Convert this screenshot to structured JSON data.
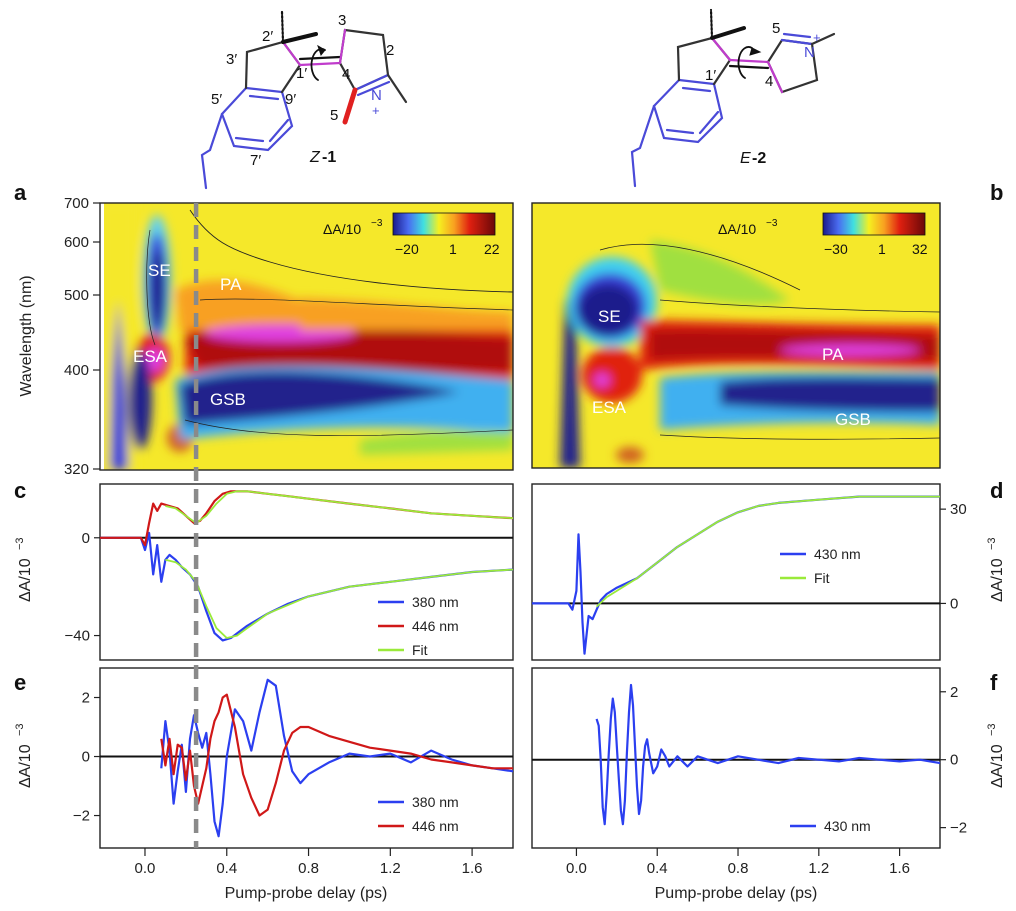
{
  "colors": {
    "blue": "#2b3ff0",
    "red": "#d01818",
    "fit": "#9aea3a",
    "dashed": "#8a8a8a",
    "molBlue": "#4a4ad8",
    "molMagenta": "#c03ccc",
    "molRed": "#e02020"
  },
  "molecules": [
    {
      "name_prefix": "Z",
      "name_num": "-1",
      "atom_labels": [
        "2′",
        "3′",
        "3",
        "2",
        "1′",
        "4",
        "5′",
        "9′",
        "5",
        "7′",
        "N"
      ],
      "charge": "+"
    },
    {
      "name_prefix": "E",
      "name_num": "-2",
      "atom_labels": [
        "5",
        "1′",
        "4",
        "N"
      ],
      "charge": "+"
    }
  ],
  "panels": {
    "a": "a",
    "b": "b",
    "c": "c",
    "d": "d",
    "e": "e",
    "f": "f"
  },
  "axes": {
    "x_label": "Pump-probe delay (ps)",
    "wavelength_label": "Wavelength (nm)",
    "dA_label_base": "ΔA/10",
    "dA_label_exp": "−3",
    "x_ticks": [
      "0.0",
      "0.4",
      "0.8",
      "1.2",
      "1.6"
    ],
    "x_tick_values": [
      0.0,
      0.4,
      0.8,
      1.2,
      1.6
    ],
    "x_range": [
      -0.22,
      1.8
    ],
    "wavelength_ticks": [
      "700",
      "600",
      "500",
      "400",
      "320"
    ],
    "wavelength_tick_values": [
      700,
      600,
      500,
      400,
      320
    ]
  },
  "map_labels": {
    "left": [
      "SE",
      "PA",
      "ESA",
      "GSB"
    ],
    "right": [
      "SE",
      "PA",
      "ESA",
      "GSB"
    ]
  },
  "colorbars": {
    "left": {
      "title_base": "ΔA/10",
      "title_exp": "−3",
      "min": "−20",
      "mid": "1",
      "max": "22"
    },
    "right": {
      "title_base": "ΔA/10",
      "title_exp": "−3",
      "min": "−30",
      "mid": "1",
      "max": "32"
    }
  },
  "chart_data": [
    {
      "panel": "a",
      "type": "heatmap",
      "x_range": [
        -0.22,
        1.8
      ],
      "wavelength_range": [
        320,
        700
      ],
      "colorbar_range": [
        -20,
        22
      ],
      "annotations": [
        "SE",
        "PA",
        "ESA",
        "GSB"
      ]
    },
    {
      "panel": "b",
      "type": "heatmap",
      "x_range": [
        -0.22,
        1.8
      ],
      "wavelength_range": [
        320,
        700
      ],
      "colorbar_range": [
        -30,
        32
      ],
      "annotations": [
        "SE",
        "PA",
        "ESA",
        "GSB"
      ]
    },
    {
      "panel": "c",
      "type": "line",
      "y_ticks": [
        "0",
        "−40"
      ],
      "y_tick_values": [
        0,
        -40
      ],
      "ylim": [
        -50,
        22
      ],
      "series": [
        {
          "name": "380 nm",
          "color": "#2b3ff0",
          "x": [
            -0.22,
            -0.02,
            0.0,
            0.02,
            0.04,
            0.06,
            0.08,
            0.1,
            0.12,
            0.15,
            0.18,
            0.22,
            0.26,
            0.3,
            0.34,
            0.38,
            0.42,
            0.5,
            0.6,
            0.7,
            0.8,
            1.0,
            1.2,
            1.4,
            1.6,
            1.8
          ],
          "y": [
            0,
            0,
            -5,
            2,
            -15,
            -3,
            -18,
            -9,
            -7,
            -9,
            -12,
            -15,
            -20,
            -30,
            -39,
            -42,
            -41,
            -36,
            -31,
            -27,
            -24,
            -20,
            -18,
            -16,
            -14,
            -13
          ]
        },
        {
          "name": "446 nm",
          "x": [
            -0.22,
            -0.02,
            0.0,
            0.02,
            0.04,
            0.06,
            0.08,
            0.12,
            0.16,
            0.2,
            0.24,
            0.27,
            0.3,
            0.34,
            0.38,
            0.42,
            0.46,
            0.5,
            0.6,
            0.7,
            0.8,
            1.0,
            1.2,
            1.4,
            1.6,
            1.8
          ],
          "y": [
            0,
            0,
            -3,
            6,
            14,
            11,
            14,
            13,
            12,
            9,
            6,
            7,
            10,
            15,
            18,
            19,
            19,
            19,
            18,
            17,
            16,
            14,
            12,
            10,
            9,
            8
          ]
        },
        {
          "name": "Fit",
          "x": [
            0.1,
            0.15,
            0.2,
            0.25,
            0.3,
            0.35,
            0.4,
            0.45,
            0.5,
            0.6,
            0.8,
            1.0,
            1.2,
            1.4,
            1.6,
            1.8
          ],
          "y": [
            -9,
            -10,
            -13,
            -18,
            -28,
            -37,
            -41,
            -40,
            -37,
            -31,
            -24,
            -20,
            -18,
            -16,
            -14,
            -13
          ]
        },
        {
          "name": "Fit",
          "x": [
            0.1,
            0.15,
            0.2,
            0.25,
            0.3,
            0.35,
            0.4,
            0.45,
            0.5,
            0.6,
            0.8,
            1.0,
            1.2,
            1.4,
            1.6,
            1.8
          ],
          "y": [
            13,
            12,
            9,
            6,
            9,
            14,
            18,
            19,
            19,
            18,
            16,
            14,
            12,
            10,
            9,
            8
          ]
        }
      ],
      "legend": [
        {
          "label": "380 nm",
          "color": "#2b3ff0"
        },
        {
          "label": "446 nm",
          "color": "#d01818"
        },
        {
          "label": "Fit",
          "color": "#9aea3a"
        }
      ]
    },
    {
      "panel": "d",
      "type": "line",
      "y_ticks": [
        "30",
        "0"
      ],
      "y_tick_values": [
        30,
        0
      ],
      "ylim": [
        -18,
        38
      ],
      "series": [
        {
          "name": "430 nm",
          "color": "#2b3ff0",
          "x": [
            -0.22,
            -0.04,
            -0.02,
            0.0,
            0.01,
            0.02,
            0.03,
            0.04,
            0.06,
            0.08,
            0.1,
            0.12,
            0.15,
            0.2,
            0.3,
            0.4,
            0.5,
            0.6,
            0.7,
            0.8,
            0.9,
            1.0,
            1.2,
            1.4,
            1.6,
            1.8
          ],
          "y": [
            0,
            0,
            -2,
            4,
            22,
            10,
            -6,
            -16,
            -4,
            -5,
            -2,
            1,
            3,
            5,
            8,
            13,
            18,
            22,
            26,
            29,
            31,
            32,
            33,
            34,
            34,
            34
          ]
        },
        {
          "name": "Fit",
          "color": "#9aea3a",
          "x": [
            0.1,
            0.15,
            0.2,
            0.3,
            0.4,
            0.5,
            0.6,
            0.7,
            0.8,
            0.9,
            1.0,
            1.2,
            1.4,
            1.6,
            1.8
          ],
          "y": [
            -1,
            2,
            4,
            8,
            13,
            18,
            22,
            26,
            29,
            31,
            32,
            33,
            34,
            34,
            34
          ]
        }
      ],
      "legend": [
        {
          "label": "430 nm",
          "color": "#2b3ff0"
        },
        {
          "label": "Fit",
          "color": "#9aea3a"
        }
      ]
    },
    {
      "panel": "e",
      "type": "line",
      "y_ticks": [
        "2",
        "0",
        "−2"
      ],
      "y_tick_values": [
        2,
        0,
        -2
      ],
      "ylim": [
        -3.1,
        3.0
      ],
      "series": [
        {
          "name": "380 nm",
          "color": "#2b3ff0",
          "x": [
            0.08,
            0.1,
            0.12,
            0.14,
            0.16,
            0.18,
            0.2,
            0.22,
            0.24,
            0.26,
            0.28,
            0.3,
            0.32,
            0.34,
            0.36,
            0.38,
            0.4,
            0.44,
            0.48,
            0.52,
            0.56,
            0.6,
            0.64,
            0.68,
            0.72,
            0.76,
            0.8,
            0.9,
            1.0,
            1.1,
            1.2,
            1.3,
            1.4,
            1.5,
            1.6,
            1.7,
            1.8
          ],
          "y": [
            -0.4,
            1.2,
            0.2,
            -1.6,
            -0.5,
            0.4,
            -1.2,
            0.6,
            1.4,
            0.8,
            0.3,
            0.8,
            -0.6,
            -2.2,
            -2.7,
            -1.6,
            0.0,
            1.6,
            1.2,
            0.2,
            1.5,
            2.6,
            2.4,
            0.7,
            -0.5,
            -0.9,
            -0.6,
            -0.2,
            0.1,
            0.0,
            0.1,
            -0.2,
            0.2,
            -0.1,
            -0.3,
            -0.4,
            -0.5
          ]
        },
        {
          "name": "446 nm",
          "color": "#d01818",
          "x": [
            0.08,
            0.1,
            0.12,
            0.14,
            0.16,
            0.18,
            0.2,
            0.22,
            0.24,
            0.26,
            0.28,
            0.3,
            0.32,
            0.34,
            0.36,
            0.38,
            0.4,
            0.44,
            0.48,
            0.52,
            0.56,
            0.6,
            0.64,
            0.68,
            0.72,
            0.76,
            0.8,
            0.9,
            1.0,
            1.1,
            1.2,
            1.3,
            1.4,
            1.5,
            1.6,
            1.7,
            1.8
          ],
          "y": [
            0.6,
            -0.3,
            0.6,
            -0.6,
            0.4,
            0.3,
            -0.8,
            0.2,
            -1.0,
            -1.6,
            -1.0,
            -0.4,
            0.6,
            1.2,
            1.5,
            2.0,
            2.1,
            1.0,
            -0.6,
            -1.4,
            -2.0,
            -1.8,
            -0.9,
            0.2,
            0.8,
            1.0,
            1.0,
            0.7,
            0.5,
            0.3,
            0.2,
            0.1,
            -0.1,
            -0.2,
            -0.3,
            -0.4,
            -0.4
          ]
        }
      ],
      "legend": [
        {
          "label": "380 nm",
          "color": "#2b3ff0"
        },
        {
          "label": "446 nm",
          "color": "#d01818"
        }
      ]
    },
    {
      "panel": "f",
      "type": "line",
      "y_ticks": [
        "2",
        "0",
        "−2"
      ],
      "y_tick_values": [
        2,
        0,
        -2
      ],
      "ylim": [
        -2.6,
        2.7
      ],
      "series": [
        {
          "name": "430 nm",
          "color": "#2b3ff0",
          "x": [
            0.1,
            0.11,
            0.12,
            0.13,
            0.14,
            0.15,
            0.16,
            0.17,
            0.18,
            0.19,
            0.2,
            0.21,
            0.22,
            0.23,
            0.24,
            0.25,
            0.26,
            0.27,
            0.28,
            0.29,
            0.3,
            0.31,
            0.32,
            0.33,
            0.34,
            0.35,
            0.36,
            0.38,
            0.4,
            0.42,
            0.44,
            0.46,
            0.5,
            0.55,
            0.6,
            0.65,
            0.7,
            0.8,
            0.9,
            1.0,
            1.1,
            1.2,
            1.3,
            1.4,
            1.5,
            1.6,
            1.7,
            1.8
          ],
          "y": [
            1.2,
            1.0,
            0.0,
            -1.4,
            -1.9,
            -1.0,
            0.2,
            1.2,
            1.8,
            1.4,
            0.4,
            -0.6,
            -1.5,
            -1.9,
            -1.2,
            0.2,
            1.4,
            2.2,
            1.6,
            0.4,
            -0.8,
            -1.6,
            -1.2,
            -0.2,
            0.4,
            0.6,
            0.2,
            -0.4,
            -0.2,
            0.3,
            0.1,
            -0.2,
            0.1,
            -0.2,
            0.1,
            0.0,
            -0.1,
            0.1,
            0.0,
            -0.1,
            0.05,
            0.0,
            -0.05,
            0.05,
            0.0,
            -0.05,
            0.0,
            -0.1
          ]
        }
      ],
      "legend": [
        {
          "label": "430 nm",
          "color": "#2b3ff0"
        }
      ]
    }
  ]
}
